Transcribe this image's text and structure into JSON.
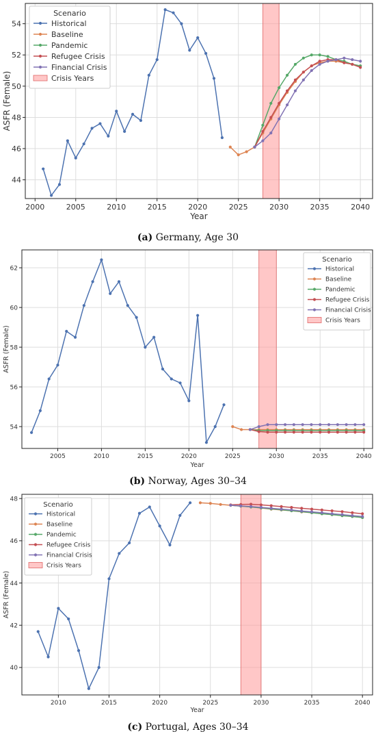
{
  "colors": {
    "historical": "#4c72b0",
    "baseline": "#dd8452",
    "pandemic": "#55a868",
    "refugee": "#c44e52",
    "financial": "#8172b3",
    "crisis": "#ff9999"
  },
  "chart_data": [
    {
      "type": "line",
      "caption_label": "(a)",
      "caption_text": " Germany, Age 30",
      "xlabel": "Year",
      "ylabel": "ASFR (Female)",
      "xlim": [
        1998.8,
        2041.5
      ],
      "ylim": [
        42.8,
        55.3
      ],
      "xticks": [
        2000,
        2005,
        2010,
        2015,
        2020,
        2025,
        2030,
        2035,
        2040
      ],
      "yticks": [
        44,
        46,
        48,
        50,
        52,
        54
      ],
      "crisis_band": [
        2028,
        2030
      ],
      "legend_title": "Scenario",
      "legend_placement": "top-left",
      "legend_entries": [
        "Historical",
        "Baseline",
        "Pandemic",
        "Refugee Crisis",
        "Financial Crisis",
        "Crisis Years"
      ],
      "series": [
        {
          "name": "Historical",
          "color_key": "historical",
          "x": [
            2001,
            2002,
            2003,
            2004,
            2005,
            2006,
            2007,
            2008,
            2009,
            2010,
            2011,
            2012,
            2013,
            2014,
            2015,
            2016,
            2017,
            2018,
            2019,
            2020,
            2021,
            2022,
            2023
          ],
          "y": [
            44.7,
            43.0,
            43.7,
            46.5,
            45.4,
            46.3,
            47.3,
            47.6,
            46.8,
            48.4,
            47.1,
            48.2,
            47.8,
            50.7,
            51.7,
            54.9,
            54.7,
            54.0,
            52.3,
            53.1,
            52.1,
            50.5,
            46.7
          ]
        },
        {
          "name": "Baseline",
          "color_key": "baseline",
          "x": [
            2024,
            2025,
            2026,
            2027,
            2028,
            2029,
            2030,
            2031,
            2032,
            2033,
            2034,
            2035,
            2036,
            2037,
            2038,
            2039,
            2040
          ],
          "y": [
            46.1,
            45.6,
            45.8,
            46.1,
            47.0,
            47.9,
            48.8,
            49.6,
            50.3,
            50.9,
            51.3,
            51.5,
            51.6,
            51.6,
            51.5,
            51.4,
            51.3
          ]
        },
        {
          "name": "Pandemic",
          "color_key": "pandemic",
          "x": [
            2027,
            2028,
            2029,
            2030,
            2031,
            2032,
            2033,
            2034,
            2035,
            2036,
            2037,
            2038,
            2039,
            2040
          ],
          "y": [
            46.1,
            47.5,
            48.9,
            49.9,
            50.7,
            51.4,
            51.8,
            52.0,
            52.0,
            51.9,
            51.7,
            51.6,
            51.4,
            51.3
          ]
        },
        {
          "name": "Refugee Crisis",
          "color_key": "refugee",
          "x": [
            2027,
            2028,
            2029,
            2030,
            2031,
            2032,
            2033,
            2034,
            2035,
            2036,
            2037,
            2038,
            2039,
            2040
          ],
          "y": [
            46.1,
            47.1,
            48.0,
            48.9,
            49.7,
            50.4,
            50.9,
            51.3,
            51.6,
            51.7,
            51.7,
            51.5,
            51.4,
            51.2
          ]
        },
        {
          "name": "Financial Crisis",
          "color_key": "financial",
          "x": [
            2027,
            2028,
            2029,
            2030,
            2031,
            2032,
            2033,
            2034,
            2035,
            2036,
            2037,
            2038,
            2039,
            2040
          ],
          "y": [
            46.1,
            46.5,
            47.0,
            47.9,
            48.8,
            49.7,
            50.4,
            51.0,
            51.4,
            51.6,
            51.7,
            51.8,
            51.7,
            51.6
          ]
        }
      ]
    },
    {
      "type": "line",
      "caption_label": "(b)",
      "caption_text": " Norway, Ages 30–34",
      "xlabel": "Year",
      "ylabel": "ASFR (Female)",
      "xlim": [
        2000.9,
        2041.0
      ],
      "ylim": [
        52.9,
        62.9
      ],
      "xticks": [
        2005,
        2010,
        2015,
        2020,
        2025,
        2030,
        2035,
        2040
      ],
      "yticks": [
        54,
        56,
        58,
        60,
        62
      ],
      "crisis_band": [
        2028,
        2030
      ],
      "legend_title": "Scenario",
      "legend_placement": "top-right",
      "legend_entries": [
        "Historical",
        "Baseline",
        "Pandemic",
        "Refugee Crisis",
        "Financial Crisis",
        "Crisis Years"
      ],
      "series": [
        {
          "name": "Historical",
          "color_key": "historical",
          "x": [
            2002,
            2003,
            2004,
            2005,
            2006,
            2007,
            2008,
            2009,
            2010,
            2011,
            2012,
            2013,
            2014,
            2015,
            2016,
            2017,
            2018,
            2019,
            2020,
            2021,
            2022,
            2023,
            2024
          ],
          "y": [
            53.7,
            54.8,
            56.4,
            57.1,
            58.8,
            58.5,
            60.1,
            61.3,
            62.4,
            60.7,
            61.3,
            60.1,
            59.5,
            58.0,
            58.5,
            56.9,
            56.4,
            56.2,
            55.3,
            59.6,
            53.2,
            54.0,
            55.1
          ]
        },
        {
          "name": "Baseline",
          "color_key": "baseline",
          "x": [
            2025,
            2026,
            2027,
            2028,
            2029,
            2030,
            2031,
            2032,
            2033,
            2034,
            2035,
            2036,
            2037,
            2038,
            2039,
            2040
          ],
          "y": [
            54.0,
            53.85,
            53.85,
            53.85,
            53.85,
            53.85,
            53.85,
            53.85,
            53.85,
            53.85,
            53.85,
            53.85,
            53.85,
            53.85,
            53.85,
            53.85
          ]
        },
        {
          "name": "Pandemic",
          "color_key": "pandemic",
          "x": [
            2027,
            2028,
            2029,
            2030,
            2031,
            2032,
            2033,
            2034,
            2035,
            2036,
            2037,
            2038,
            2039,
            2040
          ],
          "y": [
            53.85,
            53.8,
            53.8,
            53.8,
            53.8,
            53.8,
            53.8,
            53.8,
            53.8,
            53.8,
            53.8,
            53.8,
            53.8,
            53.8
          ]
        },
        {
          "name": "Refugee Crisis",
          "color_key": "refugee",
          "x": [
            2027,
            2028,
            2029,
            2030,
            2031,
            2032,
            2033,
            2034,
            2035,
            2036,
            2037,
            2038,
            2039,
            2040
          ],
          "y": [
            53.85,
            53.75,
            53.72,
            53.72,
            53.72,
            53.72,
            53.72,
            53.72,
            53.72,
            53.72,
            53.72,
            53.72,
            53.72,
            53.72
          ]
        },
        {
          "name": "Financial Crisis",
          "color_key": "financial",
          "x": [
            2027,
            2028,
            2029,
            2030,
            2031,
            2032,
            2033,
            2034,
            2035,
            2036,
            2037,
            2038,
            2039,
            2040
          ],
          "y": [
            53.85,
            54.0,
            54.1,
            54.1,
            54.1,
            54.1,
            54.1,
            54.1,
            54.1,
            54.1,
            54.1,
            54.1,
            54.1,
            54.1
          ]
        }
      ]
    },
    {
      "type": "line",
      "caption_label": "(c)",
      "caption_text": " Portugal, Ages 30–34",
      "xlabel": "Year",
      "ylabel": "ASFR (Female)",
      "xlim": [
        2006.4,
        2041.0
      ],
      "ylim": [
        38.7,
        48.2
      ],
      "xticks": [
        2010,
        2015,
        2020,
        2025,
        2030,
        2035,
        2040
      ],
      "yticks": [
        40,
        42,
        44,
        46,
        48
      ],
      "crisis_band": [
        2028,
        2030
      ],
      "legend_title": "Scenario",
      "legend_placement": "top-left",
      "legend_entries": [
        "Historical",
        "Baseline",
        "Pandemic",
        "Refugee Crisis",
        "Financial Crisis",
        "Crisis Years"
      ],
      "series": [
        {
          "name": "Historical",
          "color_key": "historical",
          "x": [
            2008,
            2009,
            2010,
            2011,
            2012,
            2013,
            2014,
            2015,
            2016,
            2017,
            2018,
            2019,
            2020,
            2021,
            2022,
            2023
          ],
          "y": [
            41.7,
            40.5,
            42.8,
            42.3,
            40.8,
            39.0,
            40.0,
            44.2,
            45.4,
            45.9,
            47.3,
            47.6,
            46.7,
            45.8,
            47.2,
            47.8
          ]
        },
        {
          "name": "Baseline",
          "color_key": "baseline",
          "x": [
            2024,
            2025,
            2026,
            2027,
            2028,
            2029,
            2030,
            2031,
            2032,
            2033,
            2034,
            2035,
            2036,
            2037,
            2038,
            2039,
            2040
          ],
          "y": [
            47.8,
            47.77,
            47.72,
            47.68,
            47.64,
            47.6,
            47.55,
            47.5,
            47.46,
            47.42,
            47.37,
            47.33,
            47.28,
            47.24,
            47.19,
            47.15,
            47.1
          ]
        },
        {
          "name": "Pandemic",
          "color_key": "pandemic",
          "x": [
            2027,
            2028,
            2029,
            2030,
            2031,
            2032,
            2033,
            2034,
            2035,
            2036,
            2037,
            2038,
            2039,
            2040
          ],
          "y": [
            47.68,
            47.64,
            47.6,
            47.56,
            47.51,
            47.47,
            47.42,
            47.38,
            47.33,
            47.28,
            47.24,
            47.19,
            47.15,
            47.1
          ]
        },
        {
          "name": "Refugee Crisis",
          "color_key": "refugee",
          "x": [
            2027,
            2028,
            2029,
            2030,
            2031,
            2032,
            2033,
            2034,
            2035,
            2036,
            2037,
            2038,
            2039,
            2040
          ],
          "y": [
            47.7,
            47.72,
            47.73,
            47.7,
            47.66,
            47.62,
            47.58,
            47.54,
            47.5,
            47.46,
            47.42,
            47.38,
            47.33,
            47.28
          ]
        },
        {
          "name": "Financial Crisis",
          "color_key": "financial",
          "x": [
            2027,
            2028,
            2029,
            2030,
            2031,
            2032,
            2033,
            2034,
            2035,
            2036,
            2037,
            2038,
            2039,
            2040
          ],
          "y": [
            47.68,
            47.65,
            47.62,
            47.58,
            47.54,
            47.5,
            47.46,
            47.41,
            47.37,
            47.33,
            47.28,
            47.24,
            47.19,
            47.15
          ]
        }
      ]
    }
  ]
}
